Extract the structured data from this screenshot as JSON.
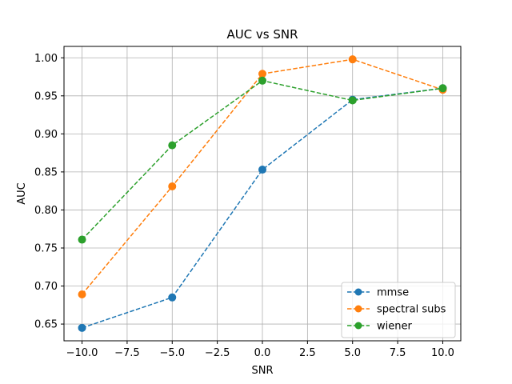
{
  "chart_data": {
    "type": "line",
    "title": "AUC vs SNR",
    "xlabel": "SNR",
    "ylabel": "AUC",
    "x": [
      -10,
      -5,
      0,
      5,
      10
    ],
    "xlim": [
      -11,
      11
    ],
    "ylim": [
      0.628,
      1.015
    ],
    "xticks": [
      -10,
      -7.5,
      -5,
      -2.5,
      0,
      2.5,
      5,
      7.5,
      10
    ],
    "xtick_labels": [
      "−10.0",
      "−7.5",
      "−5.0",
      "−2.5",
      "0.0",
      "2.5",
      "5.0",
      "7.5",
      "10.0"
    ],
    "yticks": [
      0.65,
      0.7,
      0.75,
      0.8,
      0.85,
      0.9,
      0.95,
      1.0
    ],
    "ytick_labels": [
      "0.65",
      "0.70",
      "0.75",
      "0.80",
      "0.85",
      "0.90",
      "0.95",
      "1.00"
    ],
    "grid": true,
    "legend_position": "lower-right",
    "line_style": "dashed",
    "marker": "circle",
    "series": [
      {
        "name": "mmse",
        "color": "#1f77b4",
        "values": [
          0.645,
          0.685,
          0.853,
          0.945,
          0.96
        ]
      },
      {
        "name": "spectral subs",
        "color": "#ff7f0e",
        "values": [
          0.689,
          0.831,
          0.979,
          0.998,
          0.958
        ]
      },
      {
        "name": "wiener",
        "color": "#2ca02c",
        "values": [
          0.761,
          0.885,
          0.97,
          0.944,
          0.96
        ]
      }
    ]
  }
}
